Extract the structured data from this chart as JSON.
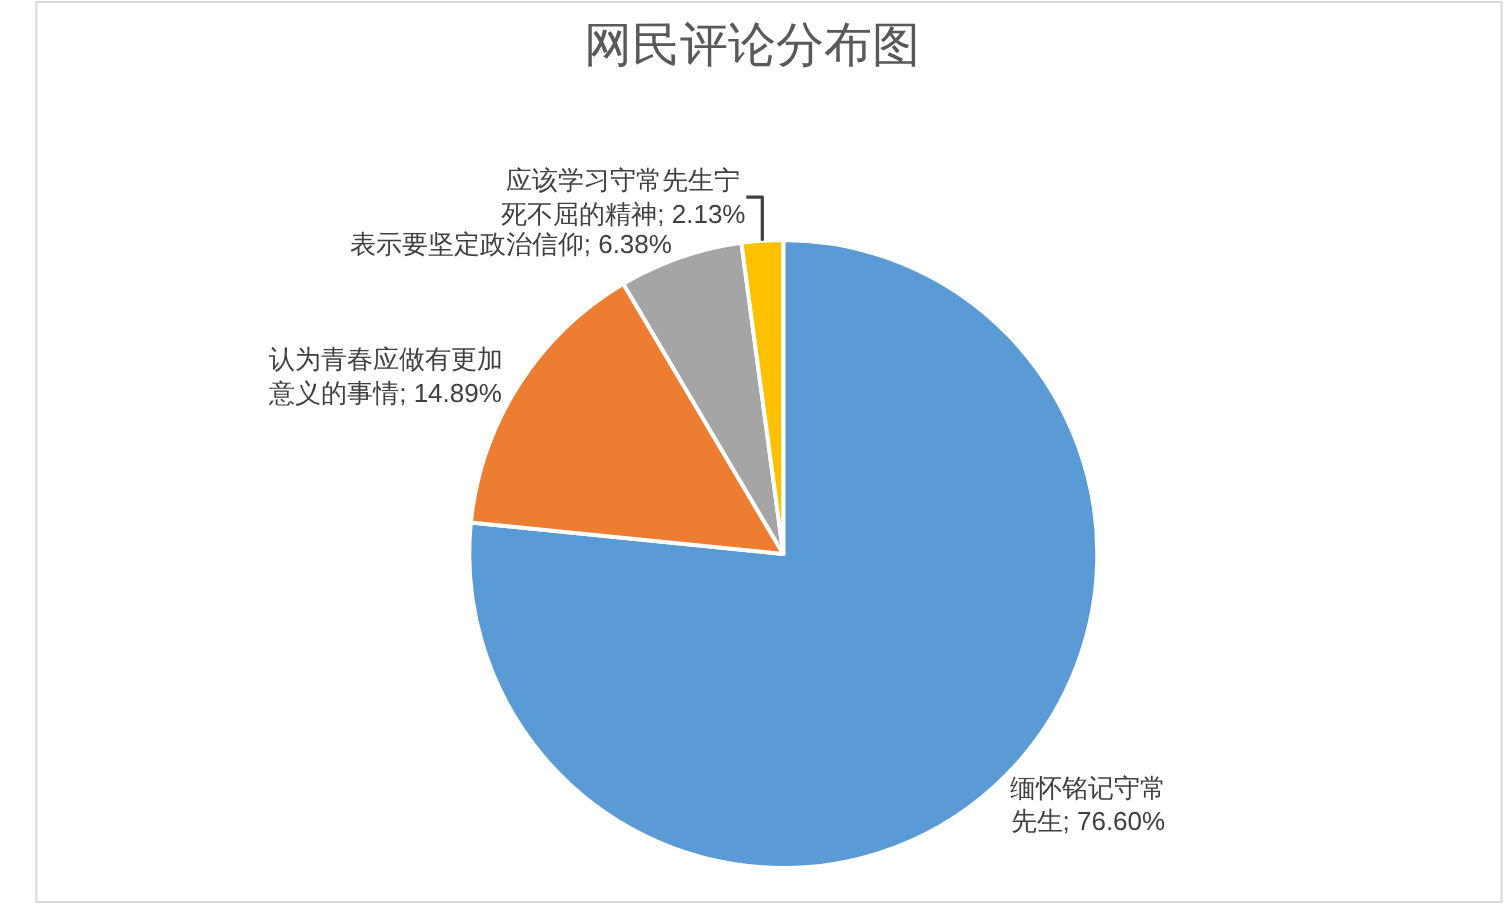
{
  "chart_data": {
    "type": "pie",
    "title": "网民评论分布图",
    "categories": [
      "缅怀铭记守常先生",
      "认为青春应做有更加意义的事情",
      "表示要坚定政治信仰",
      "应该学习守常先生宁死不屈的精神"
    ],
    "values": [
      76.6,
      14.89,
      6.38,
      2.13
    ],
    "value_labels": [
      "76.60%",
      "14.89%",
      "6.38%",
      "2.13%"
    ],
    "colors": [
      "#5b9bd5",
      "#ed7d31",
      "#a5a5a5",
      "#ffc000"
    ],
    "legend": false
  }
}
